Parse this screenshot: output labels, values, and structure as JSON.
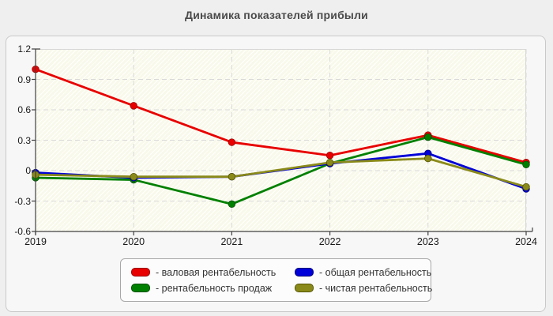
{
  "page": {
    "title": "Динамика показателей прибыли"
  },
  "chart_data": {
    "type": "line",
    "title": "Динамика показателей прибыли",
    "categories": [
      "2019",
      "2020",
      "2021",
      "2022",
      "2023",
      "2024"
    ],
    "series": [
      {
        "name": "валовая рентабельность",
        "color": "#e80000",
        "border_color": "#9c0000",
        "values": [
          1.0,
          0.64,
          0.28,
          0.15,
          0.35,
          0.08
        ]
      },
      {
        "name": "рентабельность продаж",
        "color": "#008000",
        "border_color": "#004d00",
        "values": [
          -0.07,
          -0.09,
          -0.33,
          0.07,
          0.33,
          0.06
        ]
      },
      {
        "name": "общая рентабельность",
        "color": "#0000d8",
        "border_color": "#00007a",
        "values": [
          -0.02,
          -0.07,
          -0.06,
          0.07,
          0.17,
          -0.18
        ]
      },
      {
        "name": "чистая рентабельность",
        "color": "#8a8a1a",
        "border_color": "#555500",
        "values": [
          -0.04,
          -0.06,
          -0.06,
          0.08,
          0.12,
          -0.16
        ]
      }
    ],
    "xlabel": "",
    "ylabel": "",
    "ylim": [
      -0.6,
      1.2
    ],
    "ytick_step": 0.3,
    "ytick_labels": [
      "1.2",
      "0.9",
      "0.6",
      "0.3",
      "0",
      "-0.3",
      "-0.6"
    ],
    "grid": true,
    "grid_style": "dashed",
    "legend_position": "bottom",
    "legend_order": [
      0,
      2,
      1,
      3
    ],
    "legend_label_prefix": "- "
  },
  "style_colors": {
    "grid_line": "#d9d9d9",
    "axis_line": "#404040",
    "plot_background": "#f9f9eb",
    "panel_background": "#f7f7f7",
    "page_background": "#efefef"
  }
}
